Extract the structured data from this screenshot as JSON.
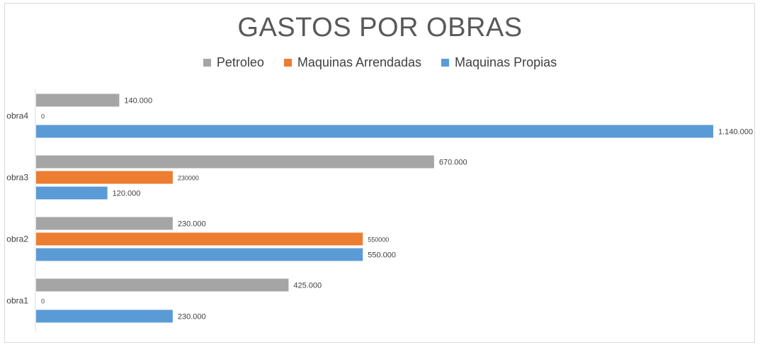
{
  "chart_data": {
    "type": "bar",
    "orientation": "horizontal",
    "title": "GASTOS POR OBRAS",
    "categories": [
      "obra4",
      "obra3",
      "obra2",
      "obra1"
    ],
    "series": [
      {
        "name": "Petroleo",
        "color": "#a5a5a5",
        "values": [
          140000,
          670000,
          230000,
          425000
        ],
        "labels": [
          "140.000",
          "670.000",
          "230.000",
          "425.000"
        ]
      },
      {
        "name": "Maquinas Arrendadas",
        "color": "#ed7d31",
        "values": [
          0,
          230000,
          550000,
          0
        ],
        "labels": [
          "0",
          "230000",
          "550000",
          "0"
        ]
      },
      {
        "name": "Maquinas Propias",
        "color": "#5b9bd5",
        "values": [
          1140000,
          120000,
          550000,
          230000
        ],
        "labels": [
          "1.140.000",
          "120.000",
          "550.000",
          "230.000"
        ]
      }
    ],
    "xlim": [
      0,
      1140000
    ],
    "grid": false,
    "legend_position": "top"
  }
}
